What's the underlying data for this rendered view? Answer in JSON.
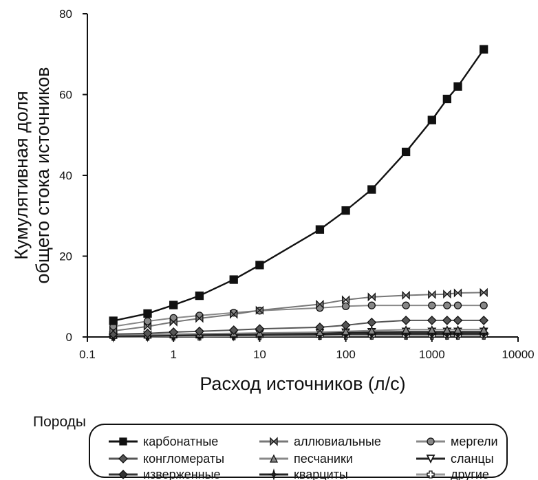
{
  "chart_data": {
    "type": "line",
    "xlabel": "Расход источников (л/с)",
    "ylabel": [
      "Кумулятивная доля",
      "общего стока источников"
    ],
    "xscale": "log",
    "xlim": [
      0.1,
      10000
    ],
    "ylim": [
      0,
      80
    ],
    "xticks": [
      {
        "value": 0.1,
        "label": "0.1"
      },
      {
        "value": 1,
        "label": "1"
      },
      {
        "value": 10,
        "label": "10"
      },
      {
        "value": 100,
        "label": "100"
      },
      {
        "value": 1000,
        "label": "1000"
      },
      {
        "value": 10000,
        "label": "10000"
      }
    ],
    "yticks": [
      {
        "value": 0,
        "label": "0"
      },
      {
        "value": 20,
        "label": "20"
      },
      {
        "value": 40,
        "label": "40"
      },
      {
        "value": 60,
        "label": "60"
      },
      {
        "value": 80,
        "label": "80"
      }
    ],
    "legend_title": "Породы",
    "legend_position": "bottom",
    "grid": false,
    "x": [
      0.2,
      0.5,
      1,
      2,
      5,
      10,
      50,
      100,
      200,
      500,
      1000,
      1500,
      2000,
      4000
    ],
    "series": [
      {
        "name": "карбонатные",
        "marker": "square",
        "color": "#111111",
        "filled": true,
        "values": [
          4.0,
          5.8,
          7.9,
          10.2,
          14.2,
          17.8,
          26.6,
          31.3,
          36.5,
          45.8,
          53.7,
          58.9,
          62.0,
          71.2
        ]
      },
      {
        "name": "аллювиальные",
        "marker": "bowtie",
        "color": "#777777",
        "filled": true,
        "values": [
          1.5,
          2.6,
          3.7,
          4.6,
          5.6,
          6.6,
          8.1,
          9.2,
          9.9,
          10.3,
          10.5,
          10.6,
          10.9,
          11.0
        ]
      },
      {
        "name": "мергели",
        "marker": "circle",
        "color": "#888888",
        "filled": true,
        "values": [
          2.6,
          3.9,
          4.7,
          5.3,
          6.0,
          6.5,
          7.2,
          7.6,
          7.8,
          7.8,
          7.8,
          7.8,
          7.8,
          7.8
        ]
      },
      {
        "name": "конгломераты",
        "marker": "diamond",
        "color": "#555555",
        "filled": true,
        "values": [
          0.7,
          0.9,
          1.2,
          1.4,
          1.7,
          2.0,
          2.4,
          2.9,
          3.6,
          4.1,
          4.1,
          4.1,
          4.1,
          4.1
        ]
      },
      {
        "name": "песчаники",
        "marker": "triangle-up",
        "color": "#888888",
        "filled": true,
        "values": [
          0.5,
          0.6,
          0.7,
          0.8,
          0.9,
          1.0,
          1.2,
          1.4,
          1.6,
          1.8,
          1.8,
          1.8,
          1.8,
          1.8
        ]
      },
      {
        "name": "сланцы",
        "marker": "triangle-down",
        "color": "#222222",
        "filled": false,
        "values": [
          0.3,
          0.4,
          0.5,
          0.6,
          0.7,
          0.8,
          1.0,
          1.1,
          1.2,
          1.3,
          1.3,
          1.3,
          1.3,
          1.3
        ]
      },
      {
        "name": "изверженные",
        "marker": "diamond",
        "color": "#333333",
        "filled": true,
        "values": [
          0.2,
          0.3,
          0.4,
          0.5,
          0.6,
          0.7,
          0.8,
          0.9,
          1.0,
          1.0,
          1.0,
          1.0,
          1.0,
          1.0
        ]
      },
      {
        "name": "кварциты",
        "marker": "star",
        "color": "#222222",
        "filled": true,
        "values": [
          0.1,
          0.2,
          0.3,
          0.4,
          0.4,
          0.5,
          0.6,
          0.7,
          0.7,
          0.7,
          0.7,
          0.7,
          0.7,
          0.7
        ]
      },
      {
        "name": "другие",
        "marker": "cross",
        "color": "#999999",
        "filled": false,
        "values": [
          0.0,
          0.05,
          0.1,
          0.1,
          0.15,
          0.2,
          0.25,
          0.3,
          0.3,
          0.3,
          0.3,
          0.3,
          0.3,
          0.3
        ]
      }
    ]
  }
}
